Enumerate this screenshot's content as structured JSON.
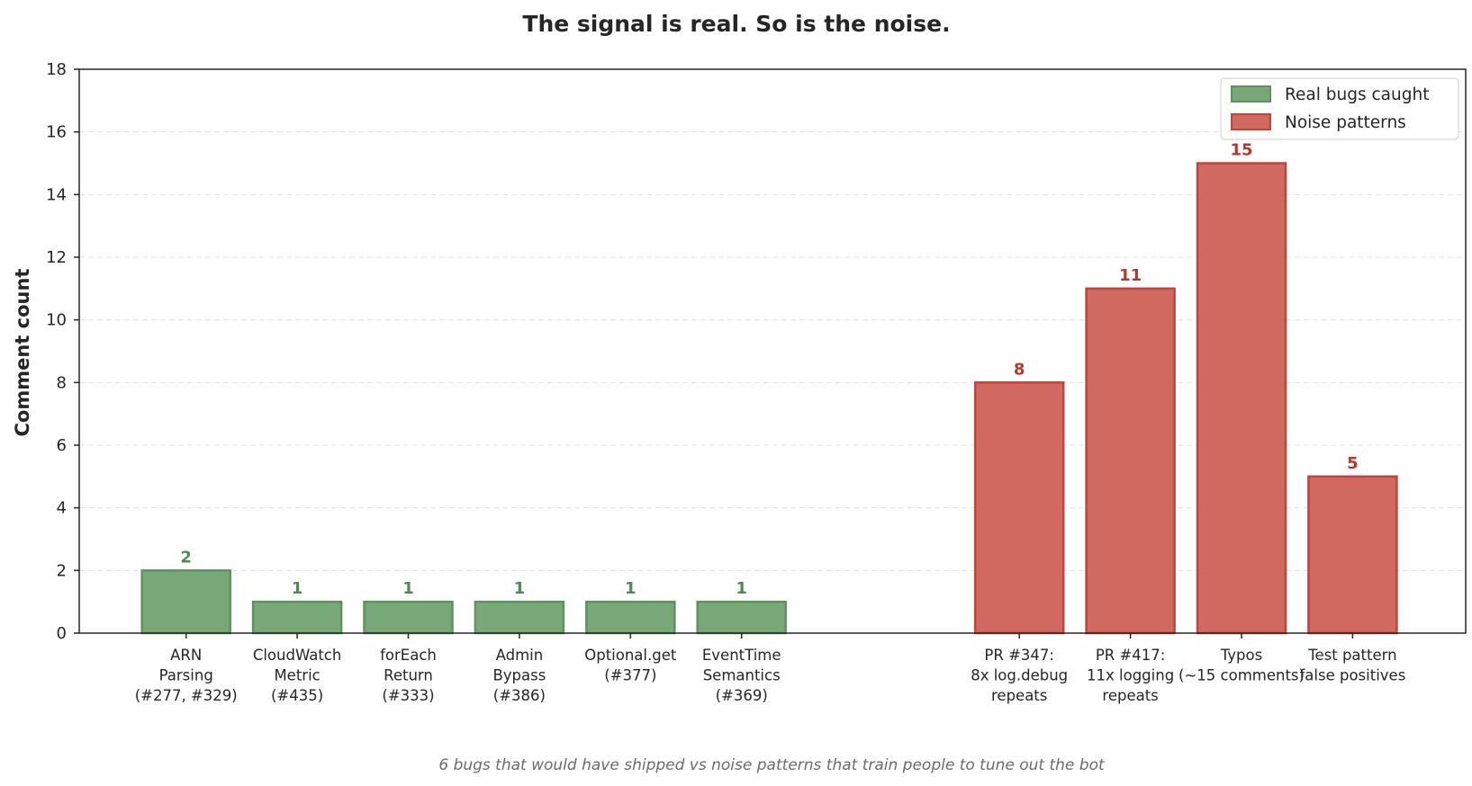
{
  "chart_data": {
    "type": "bar",
    "title": "The signal is real. So is the noise.",
    "ylabel": "Comment count",
    "xlabel": "",
    "ylim": [
      0,
      18
    ],
    "yticks": [
      0,
      2,
      4,
      6,
      8,
      10,
      12,
      14,
      16,
      18
    ],
    "grid": "horizontal dashed",
    "legend_position": "top-right",
    "caption": "6 bugs that would have shipped vs noise patterns that train people to tune out the bot",
    "series": [
      {
        "name": "Real bugs caught",
        "color": "#78a878",
        "edge_color": "#5e9360",
        "label_color": "#4f8a52",
        "categories": [
          [
            "ARN",
            "Parsing",
            "(#277, #329)"
          ],
          [
            "CloudWatch",
            "Metric",
            "(#435)"
          ],
          [
            "forEach",
            "Return",
            "(#333)"
          ],
          [
            "Admin",
            "Bypass",
            "(#386)"
          ],
          [
            "Optional.get",
            "(#377)"
          ],
          [
            "EventTime",
            "Semantics",
            "(#369)"
          ]
        ],
        "values": [
          2,
          1,
          1,
          1,
          1,
          1
        ]
      },
      {
        "name": "Noise patterns",
        "color": "#d06a60",
        "edge_color": "#bb463d",
        "label_color": "#b03a30",
        "categories": [
          [
            "PR #347:",
            "8x log.debug",
            "repeats"
          ],
          [
            "PR #417:",
            "11x logging",
            "repeats"
          ],
          [
            "Typos",
            "(~15 comments)"
          ],
          [
            "Test pattern",
            "false positives"
          ]
        ],
        "values": [
          8,
          11,
          15,
          5
        ]
      }
    ]
  }
}
